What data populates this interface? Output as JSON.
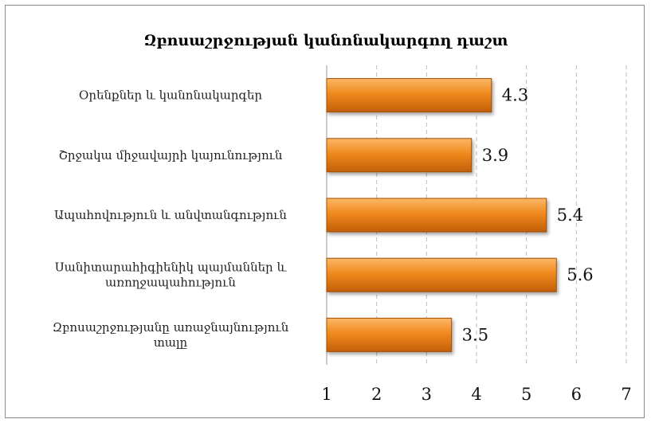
{
  "chart_data": {
    "type": "bar",
    "orientation": "horizontal",
    "title": "Զբոսաշրջության կանոնակարգող դաշտ",
    "categories": [
      [
        "Օրենքներ և կանոնակարգեր"
      ],
      [
        "Շրջակա միջավայրի կայունություն"
      ],
      [
        "Ապահովություն և անվտանգություն"
      ],
      [
        "Սանիտարահիգիենիկ պայմաններ և",
        "առողջապահություն"
      ],
      [
        "Զբոսաշրջությանը առաջնայնություն",
        "տալը"
      ]
    ],
    "values": [
      4.3,
      3.9,
      5.4,
      5.6,
      3.5
    ],
    "value_labels": [
      "4.3",
      "3.9",
      "5.4",
      "5.6",
      "3.5"
    ],
    "xlim": [
      1,
      7
    ],
    "xticks": [
      "1",
      "2",
      "3",
      "4",
      "5",
      "6",
      "7"
    ],
    "grid": true,
    "bar_color": "#f08a1e",
    "bar_color_dark": "#c25e08",
    "bar_color_light": "#fbb868",
    "xlabel": "",
    "ylabel": ""
  }
}
